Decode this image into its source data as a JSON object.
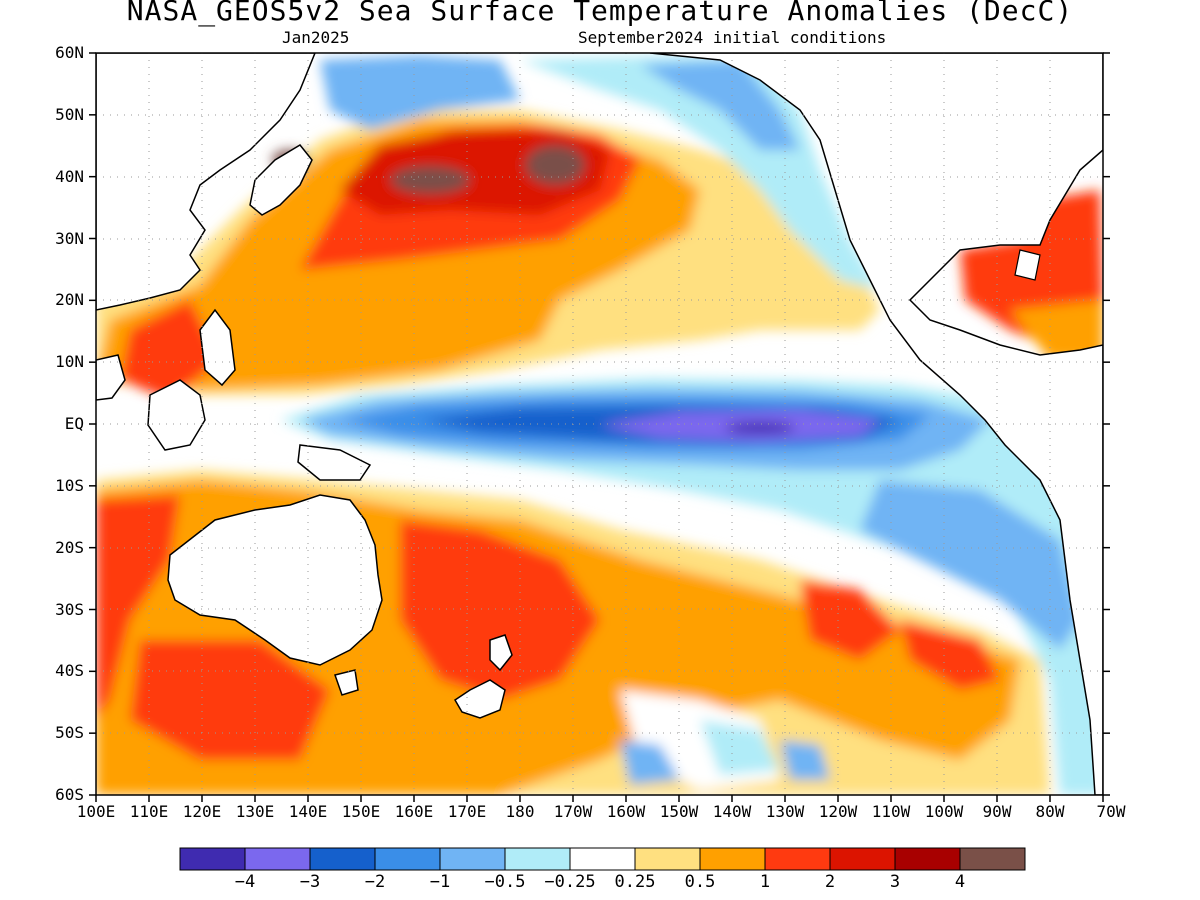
{
  "title": "NASA_GEOS5v2 Sea Surface Temperature Anomalies (DecC)",
  "subtitle_left": "Jan2025",
  "subtitle_right": "September2024 initial conditions",
  "lat_labels": [
    "60N",
    "50N",
    "40N",
    "30N",
    "20N",
    "10N",
    "EQ",
    "10S",
    "20S",
    "30S",
    "40S",
    "50S",
    "60S"
  ],
  "lon_labels": [
    "100E",
    "110E",
    "120E",
    "130E",
    "140E",
    "150E",
    "160E",
    "170E",
    "180",
    "170W",
    "160W",
    "150W",
    "140W",
    "130W",
    "120W",
    "110W",
    "100W",
    "90W",
    "80W",
    "70W"
  ],
  "colorbar": {
    "colors": [
      "#3f2bb0",
      "#7b68ee",
      "#1560cc",
      "#3a8ee8",
      "#70b4f4",
      "#b0ecf8",
      "#ffffff",
      "#ffe080",
      "#ffa000",
      "#ff3a10",
      "#dc1400",
      "#a80000",
      "#7a5048"
    ],
    "labels": [
      "−4",
      "−3",
      "−2",
      "−1",
      "−0.5",
      "−0.25",
      "0.25",
      "0.5",
      "1",
      "2",
      "3",
      "4"
    ]
  },
  "map_extent": {
    "lon_min": 100,
    "lon_max": 290,
    "lat_min": -60,
    "lat_max": 60
  }
}
